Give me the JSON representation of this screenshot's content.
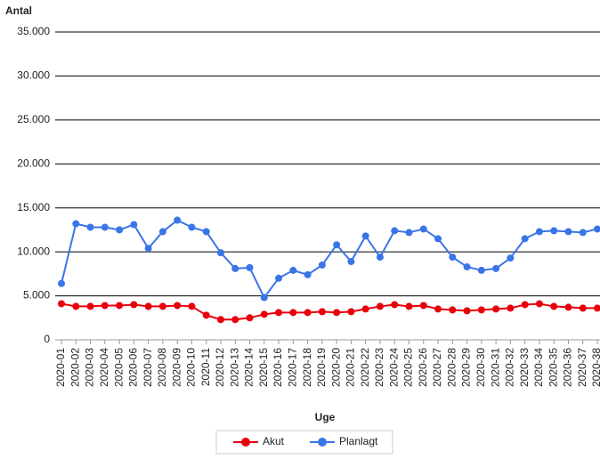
{
  "chart_data": {
    "type": "line",
    "y_label": "Antal",
    "x_label": "Uge",
    "categories": [
      "2020-01",
      "2020-02",
      "2020-03",
      "2020-04",
      "2020-05",
      "2020-06",
      "2020-07",
      "2020-08",
      "2020-09",
      "2020-10",
      "2020-11",
      "2020-12",
      "2020-13",
      "2020-14",
      "2020-15",
      "2020-16",
      "2020-17",
      "2020-18",
      "2020-19",
      "2020-20",
      "2020-21",
      "2020-22",
      "2020-23",
      "2020-24",
      "2020-25",
      "2020-26",
      "2020-27",
      "2020-28",
      "2020-29",
      "2020-30",
      "2020-31",
      "2020-32",
      "2020-33",
      "2020-34",
      "2020-35",
      "2020-36",
      "2020-37",
      "2020-38"
    ],
    "series": [
      {
        "name": "Akut",
        "color": "#e8000b",
        "values": [
          4100,
          3800,
          3800,
          3900,
          3900,
          4000,
          3800,
          3800,
          3900,
          3800,
          2800,
          2300,
          2300,
          2500,
          2900,
          3100,
          3100,
          3100,
          3200,
          3100,
          3200,
          3500,
          3800,
          4000,
          3800,
          3900,
          3500,
          3400,
          3300,
          3400,
          3500,
          3600,
          4000,
          4100,
          3800,
          3700,
          3600,
          3600
        ]
      },
      {
        "name": "Planlagt",
        "color": "#3a75e8",
        "values": [
          6400,
          13200,
          12800,
          12800,
          12500,
          13100,
          10400,
          12300,
          13600,
          12800,
          12300,
          9900,
          8100,
          8200,
          4800,
          7000,
          7900,
          7400,
          8500,
          10800,
          8900,
          11800,
          9400,
          12400,
          12200,
          12600,
          11500,
          9400,
          8300,
          7900,
          8100,
          9300,
          11500,
          12300,
          12400,
          12300,
          12200,
          12600
        ]
      }
    ],
    "ylim": [
      0,
      35000
    ],
    "yticks": [
      0,
      {
        "value": 5000,
        "label": "5.000"
      },
      {
        "value": 10000,
        "label": "10.000"
      },
      {
        "value": 15000,
        "label": "15.000"
      },
      {
        "value": 20000,
        "label": "20.000"
      },
      {
        "value": 25000,
        "label": "25.000"
      },
      {
        "value": 30000,
        "label": "30.000"
      },
      {
        "value": 35000,
        "label": "35.000"
      }
    ],
    "grid": true,
    "legend": "bottom"
  }
}
